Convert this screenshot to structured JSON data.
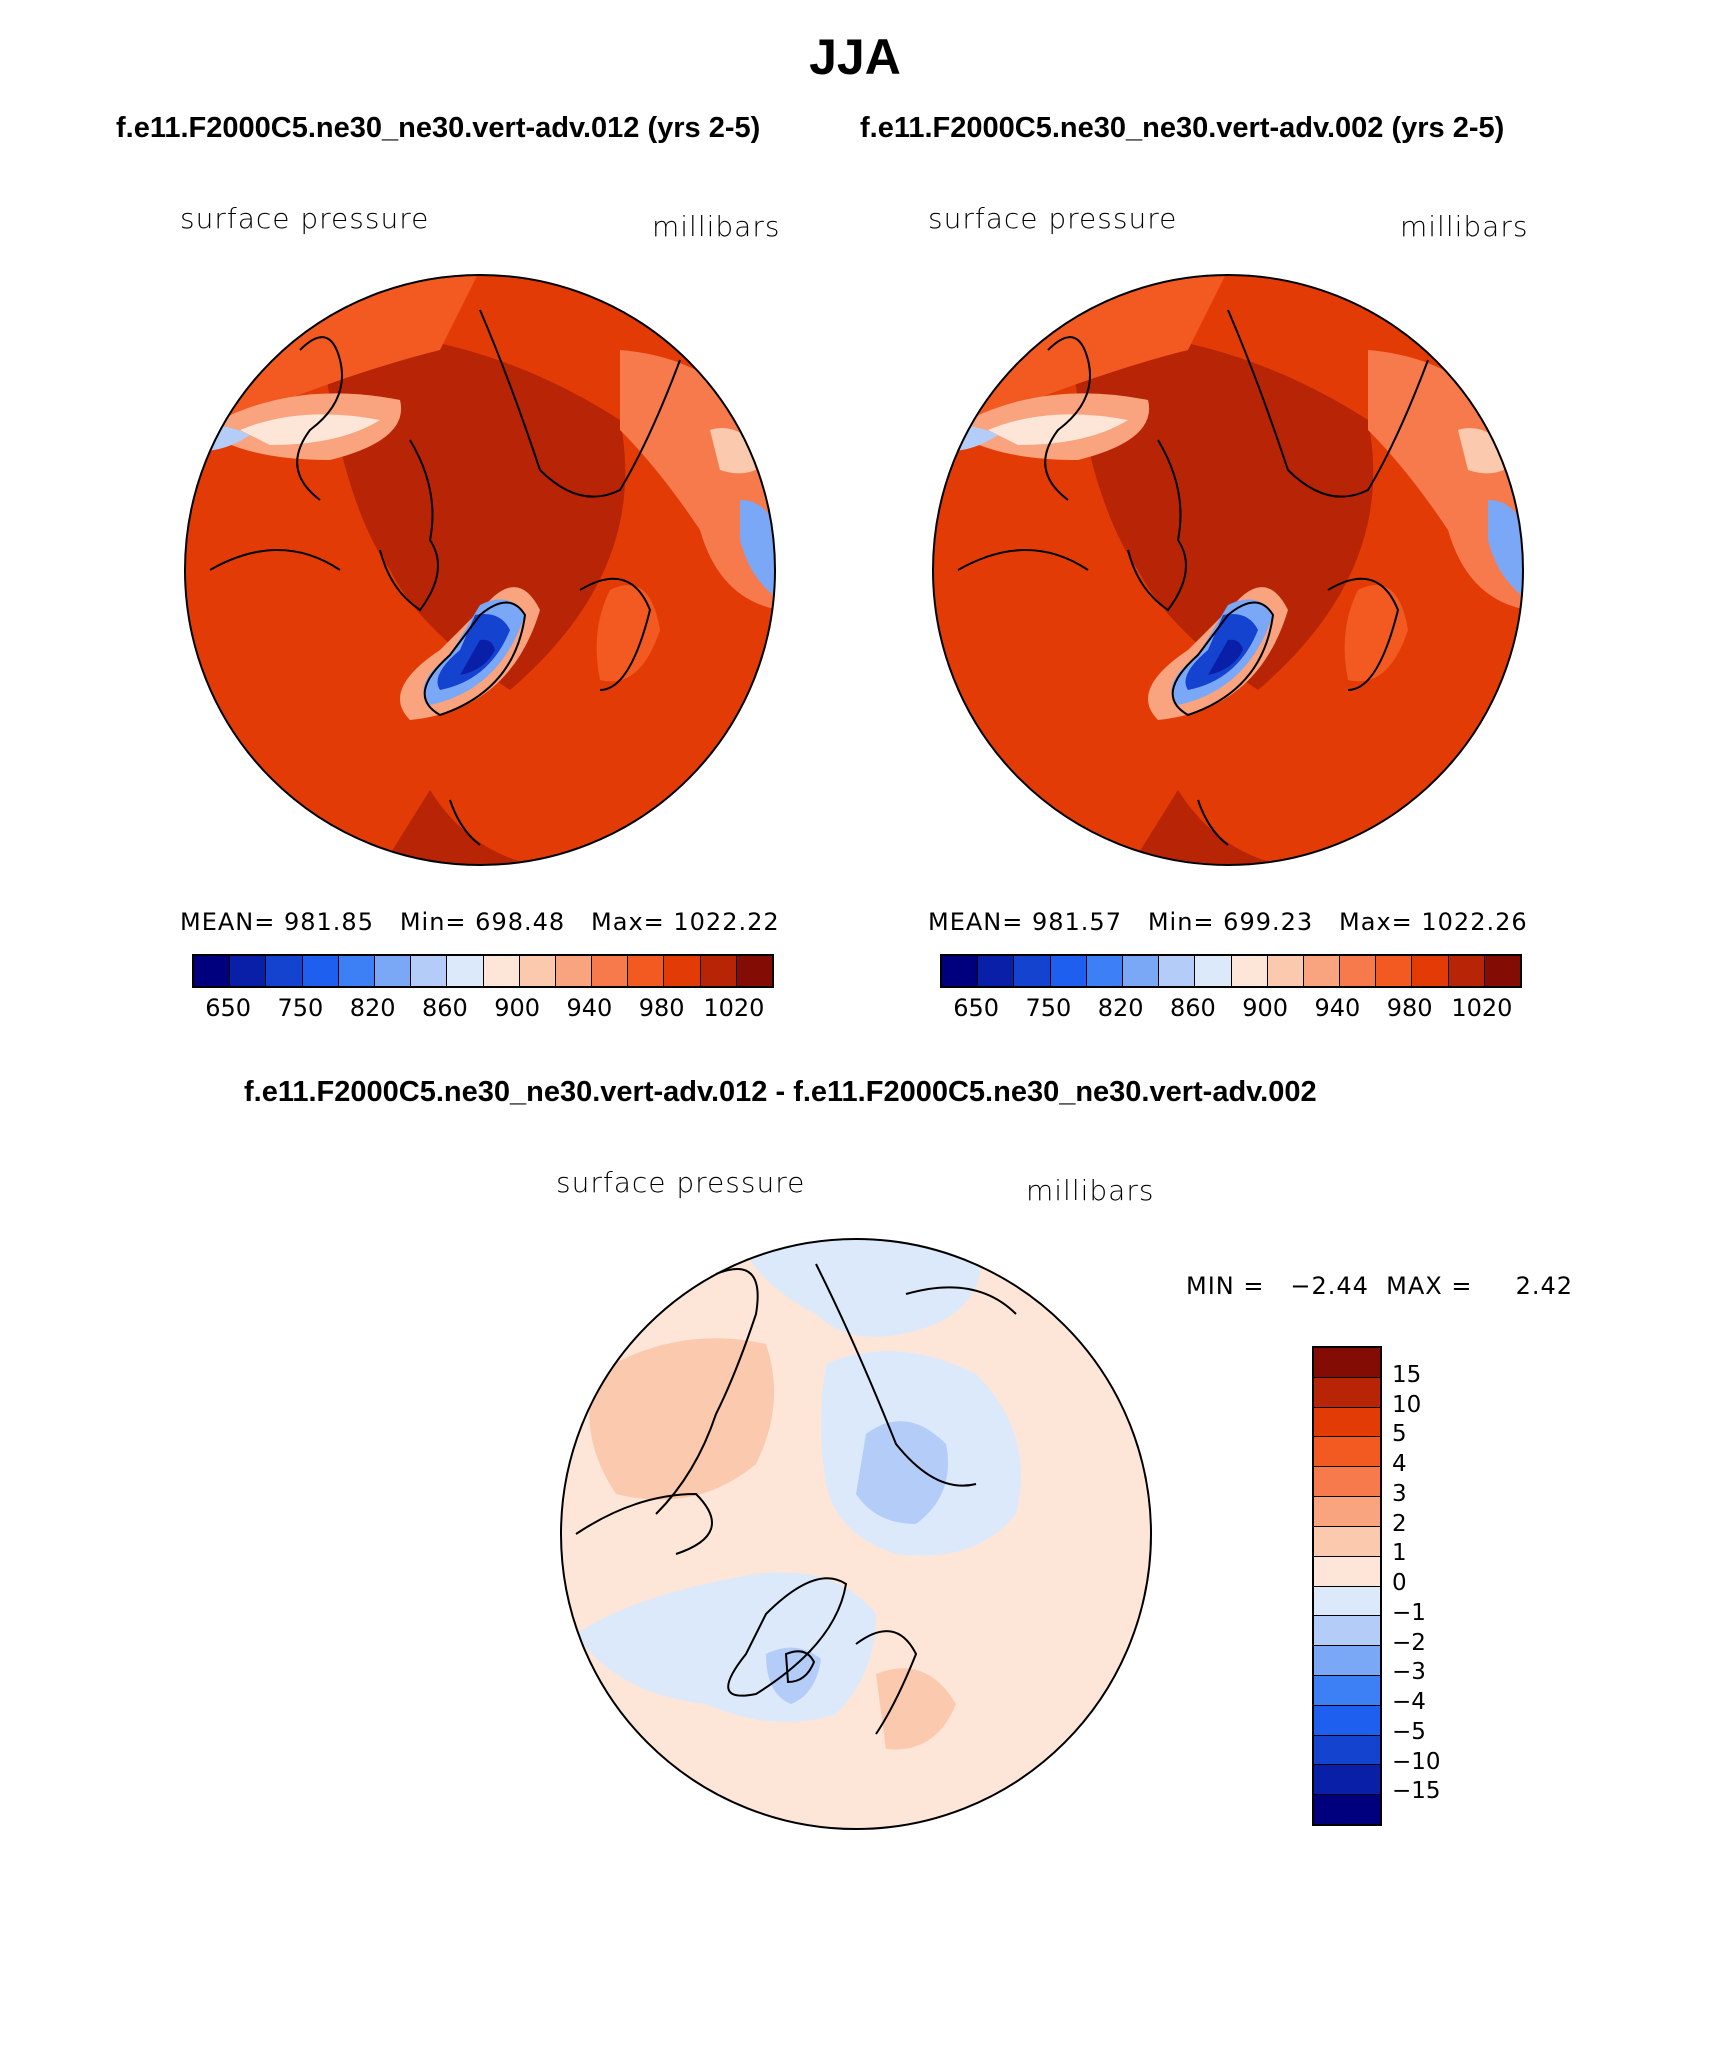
{
  "main_title": "JJA",
  "top_left": {
    "case_title": "f.e11.F2000C5.ne30_ne30.vert-adv.012 (yrs 2-5)",
    "var_label": "surface pressure",
    "units": "millibars",
    "stats": "MEAN= 981.85   Min= 698.48   Max= 1022.22"
  },
  "top_right": {
    "case_title": "f.e11.F2000C5.ne30_ne30.vert-adv.002 (yrs 2-5)",
    "var_label": "surface pressure",
    "units": "millibars",
    "stats": "MEAN= 981.57   Min= 699.23   Max= 1022.26"
  },
  "diff": {
    "title": "f.e11.F2000C5.ne30_ne30.vert-adv.012 - f.e11.F2000C5.ne30_ne30.vert-adv.002",
    "var_label": "surface pressure",
    "units": "millibars",
    "stats": "MIN =   −2.44  MAX =     2.42"
  },
  "abs_colorbar": {
    "colors": [
      "#00007f",
      "#0a1fa8",
      "#1443d0",
      "#1f5ff0",
      "#3d7ff5",
      "#7aa8f7",
      "#b3ccf8",
      "#dce9fb",
      "#fde6d8",
      "#fbc9ad",
      "#f9a47e",
      "#f77a4d",
      "#f25a22",
      "#e33b06",
      "#b82406",
      "#830d05"
    ],
    "tick_labels": [
      "650",
      "750",
      "820",
      "860",
      "900",
      "940",
      "980",
      "1020"
    ]
  },
  "diff_colorbar": {
    "colors": [
      "#830d05",
      "#b82406",
      "#e33b06",
      "#f25a22",
      "#f77a4d",
      "#f9a47e",
      "#fbc9ad",
      "#fde6d8",
      "#dce9fb",
      "#b3ccf8",
      "#7aa8f7",
      "#3d7ff5",
      "#1f5ff0",
      "#1443d0",
      "#0a1fa8",
      "#00007f"
    ],
    "tick_labels": [
      "15",
      "10",
      "5",
      "4",
      "3",
      "2",
      "1",
      "0",
      "−1",
      "−2",
      "−3",
      "−4",
      "−5",
      "−10",
      "−15"
    ]
  }
}
